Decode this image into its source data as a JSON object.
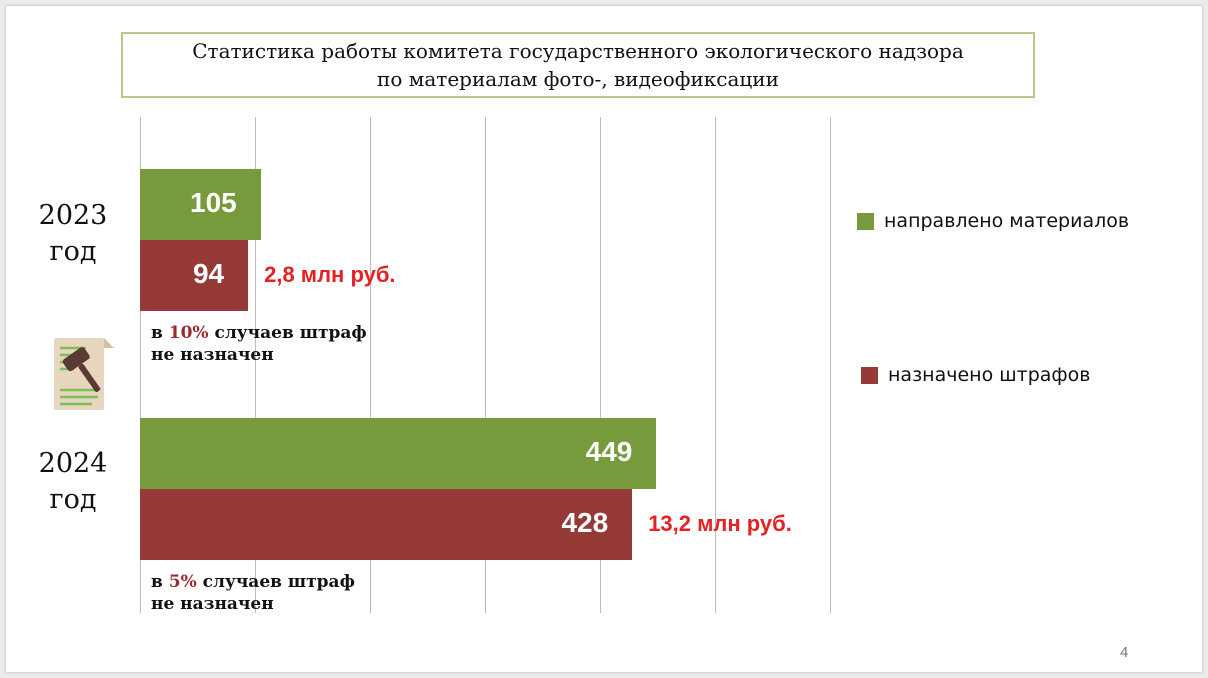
{
  "title": {
    "line1": "Статистика работы комитета государственного экологического надзора",
    "line2": "по материалам фото-, видеофиксации"
  },
  "colors": {
    "sent": "#779a3d",
    "fined": "#963a37",
    "sum": "#e32222"
  },
  "legend": {
    "sent": "направлено материалов",
    "fined": "назначено штрафов"
  },
  "icon": "gavel-document-icon",
  "page_number": "4",
  "groups": [
    {
      "year_line1": "2023",
      "year_line2": "год",
      "sum_text": "2,8 млн руб.",
      "note_prefix": "в ",
      "note_pct": "10%",
      "note_rest": " случаев  штраф",
      "note_line2": "не назначен"
    },
    {
      "year_line1": "2024",
      "year_line2": "год",
      "sum_text": "13,2 млн руб.",
      "note_prefix": "в ",
      "note_pct": "5%",
      "note_rest": " случаев  штраф",
      "note_line2": "не назначен"
    }
  ],
  "chart_data": {
    "type": "bar",
    "orientation": "horizontal",
    "categories": [
      "2023 год",
      "2024 год"
    ],
    "series": [
      {
        "name": "направлено материалов",
        "values": [
          105,
          449
        ]
      },
      {
        "name": "назначено штрафов",
        "values": [
          94,
          428
        ]
      }
    ],
    "annotations": [
      "2,8 млн руб.",
      "13,2 млн руб."
    ],
    "xlim": [
      0,
      600
    ],
    "grid": true,
    "legend": "right"
  }
}
